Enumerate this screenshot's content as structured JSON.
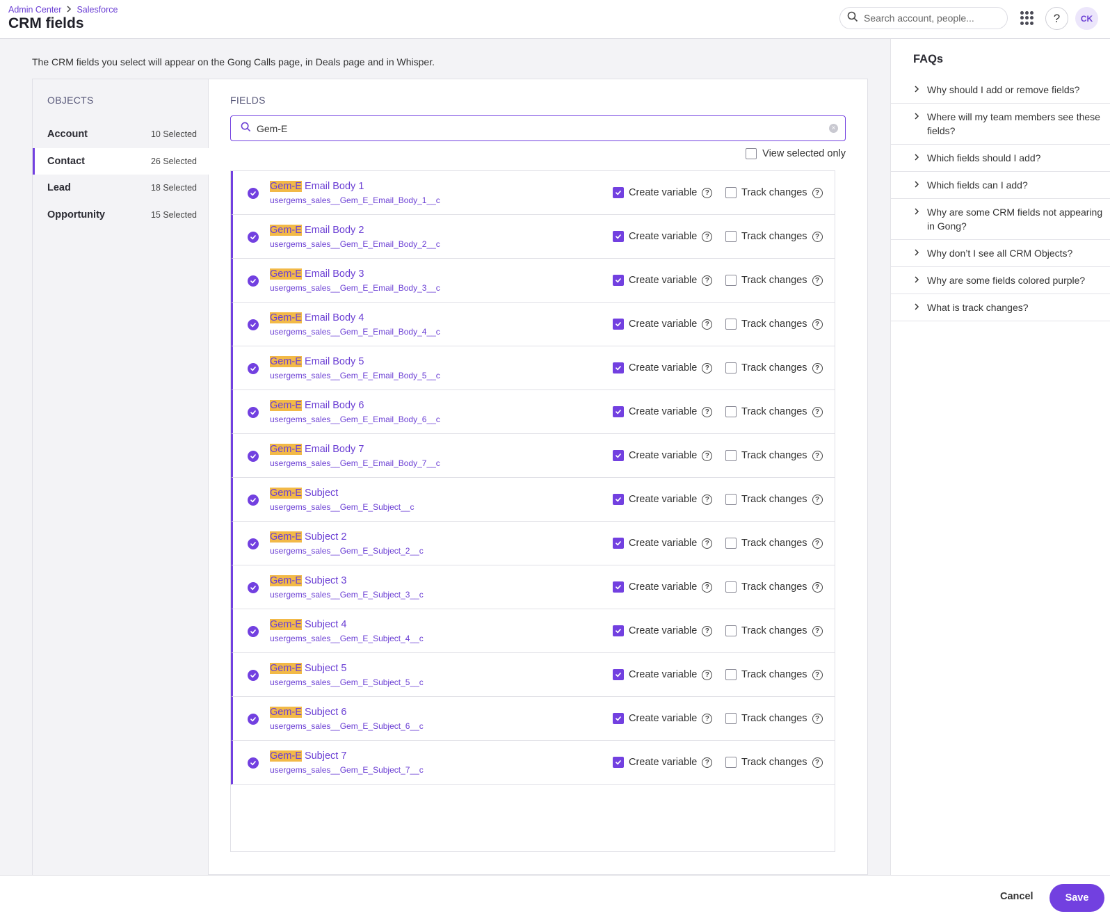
{
  "header": {
    "breadcrumb": [
      "Admin Center",
      "Salesforce"
    ],
    "title": "CRM fields",
    "search_placeholder": "Search account, people...",
    "help_label": "?",
    "avatar_initials": "CK"
  },
  "intro": "The CRM fields you select will appear on the Gong Calls page, in Deals page and in Whisper.",
  "objects": {
    "label": "OBJECTS",
    "items": [
      {
        "name": "Account",
        "count": "10 Selected",
        "active": false
      },
      {
        "name": "Contact",
        "count": "26 Selected",
        "active": true
      },
      {
        "name": "Lead",
        "count": "18 Selected",
        "active": false
      },
      {
        "name": "Opportunity",
        "count": "15 Selected",
        "active": false
      }
    ]
  },
  "fields": {
    "label": "FIELDS",
    "search_value": "Gem-E",
    "view_selected_label": "View selected only",
    "create_variable_label": "Create variable",
    "track_changes_label": "Track changes",
    "highlight": "Gem-E",
    "rows": [
      {
        "rest": " Email Body 1",
        "api": "usergems_sales__Gem_E_Email_Body_1__c"
      },
      {
        "rest": " Email Body 2",
        "api": "usergems_sales__Gem_E_Email_Body_2__c"
      },
      {
        "rest": " Email Body 3",
        "api": "usergems_sales__Gem_E_Email_Body_3__c"
      },
      {
        "rest": " Email Body 4",
        "api": "usergems_sales__Gem_E_Email_Body_4__c"
      },
      {
        "rest": " Email Body 5",
        "api": "usergems_sales__Gem_E_Email_Body_5__c"
      },
      {
        "rest": " Email Body 6",
        "api": "usergems_sales__Gem_E_Email_Body_6__c"
      },
      {
        "rest": " Email Body 7",
        "api": "usergems_sales__Gem_E_Email_Body_7__c"
      },
      {
        "rest": " Subject",
        "api": "usergems_sales__Gem_E_Subject__c"
      },
      {
        "rest": " Subject 2",
        "api": "usergems_sales__Gem_E_Subject_2__c"
      },
      {
        "rest": " Subject 3",
        "api": "usergems_sales__Gem_E_Subject_3__c"
      },
      {
        "rest": " Subject 4",
        "api": "usergems_sales__Gem_E_Subject_4__c"
      },
      {
        "rest": " Subject 5",
        "api": "usergems_sales__Gem_E_Subject_5__c"
      },
      {
        "rest": " Subject 6",
        "api": "usergems_sales__Gem_E_Subject_6__c"
      },
      {
        "rest": " Subject 7",
        "api": "usergems_sales__Gem_E_Subject_7__c"
      }
    ]
  },
  "faq": {
    "title": "FAQs",
    "items": [
      "Why should I add or remove fields?",
      "Where will my team members see these fields?",
      "Which fields should I add?",
      "Which fields can I add?",
      "Why are some CRM fields not appearing in Gong?",
      "Why don’t I see all CRM Objects?",
      "Why are some fields colored purple?",
      "What is track changes?"
    ]
  },
  "footer": {
    "cancel_label": "Cancel",
    "save_label": "Save"
  },
  "colors": {
    "accent": "#7240e0",
    "highlight": "#f2b947"
  },
  "icons": {
    "search": "search-icon",
    "apps": "apps-grid-icon",
    "check": "check-circle-icon",
    "help": "question-circle-icon",
    "chevron": "chevron-right-icon",
    "clear": "clear-icon"
  }
}
